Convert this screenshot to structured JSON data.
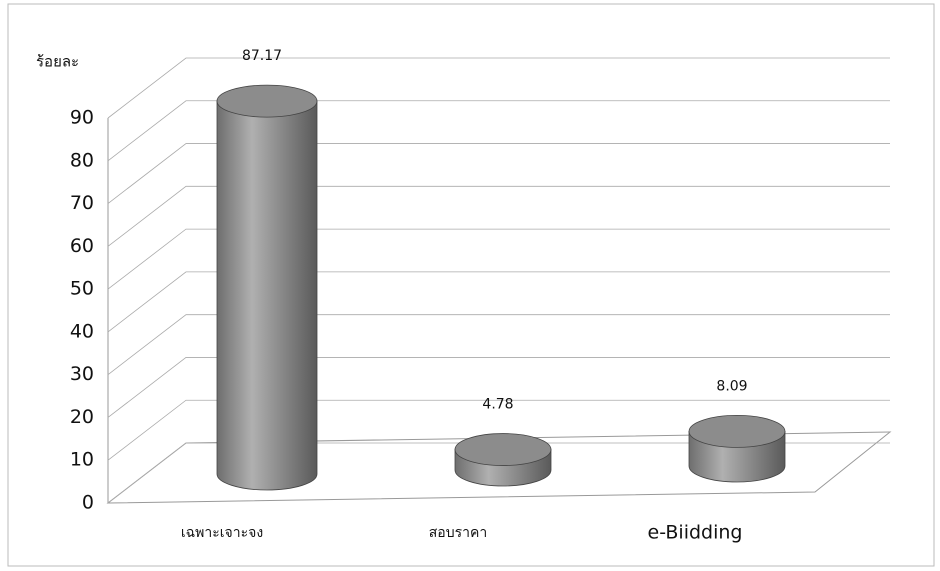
{
  "chart_data": {
    "type": "bar3d",
    "y_axis_label": "ร้อยละ",
    "categories": [
      "เฉพาะเจาะจง",
      "สอบราคา",
      "e-Biidding"
    ],
    "values": [
      87.17,
      4.78,
      8.09
    ],
    "color": "#8c8c8c",
    "ylim": [
      0,
      90
    ],
    "yticks": [
      0,
      10,
      20,
      30,
      40,
      50,
      60,
      70,
      80,
      90
    ],
    "grid": true
  }
}
